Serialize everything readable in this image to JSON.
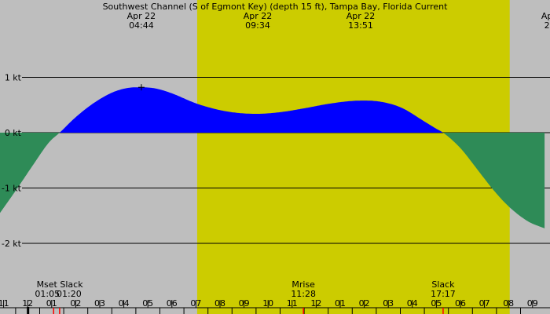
{
  "chart_data": {
    "type": "area",
    "title": "Southwest Channel (S of Egmont Key) (depth 15 ft), Tampa Bay, Florida Current",
    "x_unit": "hour of day (Apr 22)",
    "y_unit": "kt",
    "xlim": [
      10.85,
      33.5
    ],
    "ylim": [
      -2.9,
      2.4
    ],
    "y_ticks": [
      {
        "value": 1,
        "label": "1 kt"
      },
      {
        "value": 0,
        "label": "0 kt"
      },
      {
        "value": -1,
        "label": "-1 kt"
      },
      {
        "value": -2,
        "label": "-2 kt"
      }
    ],
    "x_ticks": [
      {
        "value": 11,
        "label": "11"
      },
      {
        "value": 12,
        "label": "12"
      },
      {
        "value": 13,
        "label": "01"
      },
      {
        "value": 14,
        "label": "02"
      },
      {
        "value": 15,
        "label": "03"
      },
      {
        "value": 16,
        "label": "04"
      },
      {
        "value": 17,
        "label": "05"
      },
      {
        "value": 18,
        "label": "06"
      },
      {
        "value": 19,
        "label": "07"
      },
      {
        "value": 20,
        "label": "08"
      },
      {
        "value": 21,
        "label": "09"
      },
      {
        "value": 22,
        "label": "10"
      },
      {
        "value": 23,
        "label": "11"
      },
      {
        "value": 24,
        "label": "12"
      },
      {
        "value": 25,
        "label": "01"
      },
      {
        "value": 26,
        "label": "02"
      },
      {
        "value": 27,
        "label": "03"
      },
      {
        "value": 28,
        "label": "04"
      },
      {
        "value": 29,
        "label": "05"
      },
      {
        "value": 30,
        "label": "06"
      },
      {
        "value": 31,
        "label": "07"
      },
      {
        "value": 32,
        "label": "08"
      },
      {
        "value": 33,
        "label": "09"
      }
    ],
    "daylight": [
      19.05,
      32.05
    ],
    "series": [
      {
        "x": [
          10.85,
          11.5,
          12.2,
          12.9,
          13.33,
          14.0,
          14.8,
          15.6,
          16.2,
          16.73,
          17.3,
          18.0,
          19.0,
          20.2,
          21.5,
          22.5,
          23.5,
          24.5,
          25.4,
          26.0,
          26.8,
          27.6,
          28.4,
          29.0,
          29.28,
          30.0,
          30.8,
          31.4,
          32.0,
          32.8,
          33.5
        ],
        "y": [
          -1.45,
          -1.05,
          -0.6,
          -0.17,
          0.0,
          0.28,
          0.55,
          0.74,
          0.81,
          0.82,
          0.8,
          0.71,
          0.53,
          0.39,
          0.34,
          0.37,
          0.44,
          0.52,
          0.57,
          0.58,
          0.55,
          0.44,
          0.23,
          0.07,
          0.0,
          -0.28,
          -0.72,
          -1.05,
          -1.33,
          -1.6,
          -1.73
        ]
      }
    ],
    "marker": {
      "x": 16.73,
      "y": 0.82
    },
    "top_labels": [
      {
        "x": 16.73,
        "date": "Apr 22",
        "time": "04:44"
      },
      {
        "x": 21.57,
        "date": "Apr 22",
        "time": "09:34"
      },
      {
        "x": 25.85,
        "date": "Apr 22",
        "time": "13:51"
      },
      {
        "x": 33.6,
        "date": "Ap",
        "time": "2"
      }
    ],
    "events": [
      {
        "x": 13.08,
        "label": "Mset",
        "time": "01:05"
      },
      {
        "x": 13.33,
        "label": "Slack",
        "time": "01:20"
      },
      {
        "x": 23.47,
        "label": "Mrise",
        "time": "11:28"
      },
      {
        "x": 29.28,
        "label": "Slack",
        "time": "17:17"
      }
    ],
    "red_ticks": [
      13.08,
      13.33,
      23.47,
      29.28
    ],
    "now_marker": 12.0,
    "colors": {
      "night": "#bebebe",
      "day": "#cccc00",
      "flood": "#0000ff",
      "ebb": "#2e8b57",
      "grid": "#000000",
      "event_tick": "#ff0000"
    }
  }
}
